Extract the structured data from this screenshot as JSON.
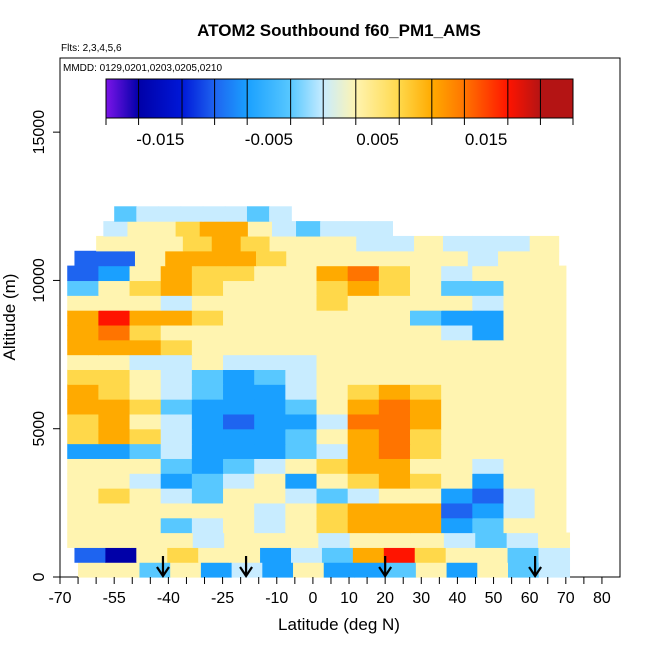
{
  "chart_data": {
    "type": "heatmap",
    "title": "ATOM2 Southbound f60_PM1_AMS",
    "flights_label": "Flts: 2,3,4,5,6",
    "mmdd_label": "MMDD: 0129,0201,0203,0205,0210",
    "xlabel": "Latitude (deg N)",
    "ylabel": "Altitude (m)",
    "xlim": [
      -70,
      85
    ],
    "ylim": [
      0,
      17500
    ],
    "x_ticks": [
      -70,
      -55,
      -40,
      -25,
      -10,
      0,
      10,
      20,
      30,
      40,
      50,
      60,
      70,
      80
    ],
    "x_tick_labels": [
      "-70",
      "-55",
      "-40",
      "-25",
      "-10",
      "0",
      "10",
      "20",
      "30",
      "40",
      "50",
      "60",
      "70",
      "80"
    ],
    "x_minor_ticks": [
      -65,
      -60,
      -50,
      -45,
      -35,
      -30,
      -20,
      -15,
      -5,
      5,
      15,
      25,
      35,
      45,
      55,
      65,
      75
    ],
    "y_ticks": [
      0,
      5000,
      10000,
      15000
    ],
    "y_tick_labels": [
      "0",
      "5000",
      "10000",
      "15000"
    ],
    "colorbar": {
      "min": -0.02,
      "max": 0.023,
      "ticks": [
        -0.015,
        -0.005,
        0.005,
        0.015
      ],
      "tick_labels": [
        "-0.015",
        "-0.005",
        "0.005",
        "0.015"
      ],
      "bounds": [
        -0.02,
        -0.017,
        -0.013,
        -0.01,
        -0.007,
        -0.003,
        0.0,
        0.003,
        0.007,
        0.01,
        0.013,
        0.017,
        0.02,
        0.023
      ],
      "colors": [
        "#7b14e8",
        "#0000a8",
        "#0018d8",
        "#1e64f0",
        "#1aa0ff",
        "#58c8ff",
        "#c8ecff",
        "#fff4b0",
        "#ffd84a",
        "#ffaa00",
        "#ff7400",
        "#ff1400",
        "#b41414"
      ]
    },
    "sonde_arrows_lat": [
      -41.5,
      -18.5,
      20,
      61.5
    ],
    "layers": [
      {
        "alt": [
          0,
          500
        ],
        "lat": [
          -65,
          71
        ],
        "values": [
          0.004,
          0.006,
          -0.003,
          0.006,
          -0.005,
          0.001,
          -0.004,
          0.003,
          -0.005,
          -0.004,
          -0.003,
          0.006,
          -0.004,
          0.004,
          -0.003,
          0.002
        ]
      },
      {
        "alt": [
          500,
          1000
        ],
        "lat": [
          -66,
          71
        ],
        "values": [
          -0.009,
          -0.014,
          0.004,
          0.008,
          0.005,
          0.004,
          -0.004,
          0.001,
          -0.003,
          0.012,
          0.019,
          0.008,
          0.004,
          0.003,
          -0.001,
          0.002
        ]
      },
      {
        "alt": [
          1000,
          1500
        ],
        "lat": [
          -68,
          71
        ],
        "values": [
          0.004,
          0.005,
          0.004,
          0.005,
          0.002,
          0.006,
          0.003,
          0.004,
          0.002,
          0.003,
          0.005,
          0.004,
          0.002,
          -0.002,
          0.001,
          0.003
        ]
      },
      {
        "alt": [
          1500,
          2000
        ],
        "lat": [
          -68,
          70
        ],
        "values": [
          0.005,
          0.006,
          0.005,
          -0.002,
          0.002,
          0.003,
          0.002,
          0.005,
          0.008,
          0.01,
          0.012,
          0.012,
          -0.006,
          -0.003,
          0.004,
          0.004
        ]
      },
      {
        "alt": [
          2000,
          2500
        ],
        "lat": [
          -68,
          70
        ],
        "values": [
          0.004,
          0.006,
          0.004,
          0.005,
          0.006,
          0.004,
          0.001,
          0.004,
          0.009,
          0.01,
          0.011,
          0.011,
          -0.008,
          -0.006,
          0.002,
          0.004
        ]
      },
      {
        "alt": [
          2500,
          3000
        ],
        "lat": [
          -68,
          70
        ],
        "values": [
          0.006,
          0.008,
          0.004,
          0.002,
          -0.002,
          0.003,
          0.004,
          0.0,
          -0.003,
          0.001,
          0.004,
          0.006,
          -0.006,
          -0.01,
          0.002,
          0.004
        ]
      },
      {
        "alt": [
          3000,
          3500
        ],
        "lat": [
          -68,
          70
        ],
        "values": [
          0.005,
          0.004,
          0.0,
          -0.004,
          -0.002,
          0.002,
          0.005,
          -0.004,
          0.004,
          0.008,
          0.01,
          0.007,
          0.003,
          -0.006,
          0.003,
          0.004
        ]
      },
      {
        "alt": [
          3500,
          4000
        ],
        "lat": [
          -68,
          70
        ],
        "values": [
          0.004,
          0.006,
          0.003,
          -0.002,
          -0.006,
          -0.003,
          0.002,
          0.006,
          0.008,
          0.011,
          0.012,
          0.006,
          0.004,
          0.002,
          0.004,
          0.004
        ]
      },
      {
        "alt": [
          4000,
          4500
        ],
        "lat": [
          -68,
          70
        ],
        "values": [
          -0.005,
          -0.007,
          -0.003,
          0.001,
          -0.004,
          -0.006,
          -0.004,
          -0.003,
          0.002,
          0.01,
          0.013,
          0.008,
          0.004,
          0.003,
          0.004,
          0.004
        ]
      },
      {
        "alt": [
          4500,
          5000
        ],
        "lat": [
          -68,
          70
        ],
        "values": [
          0.008,
          0.012,
          0.007,
          0.002,
          -0.005,
          -0.006,
          -0.004,
          -0.002,
          0.003,
          0.012,
          0.014,
          0.009,
          0.005,
          0.004,
          0.004,
          0.004
        ]
      },
      {
        "alt": [
          5000,
          5500
        ],
        "lat": [
          -68,
          70
        ],
        "values": [
          0.007,
          0.01,
          0.006,
          0.001,
          -0.006,
          -0.008,
          -0.006,
          -0.004,
          0.002,
          0.013,
          0.014,
          0.01,
          0.004,
          0.005,
          0.005,
          0.004
        ]
      },
      {
        "alt": [
          5500,
          6000
        ],
        "lat": [
          -68,
          70
        ],
        "values": [
          0.01,
          0.012,
          0.008,
          -0.003,
          -0.007,
          -0.007,
          -0.005,
          -0.003,
          0.003,
          0.012,
          0.013,
          0.01,
          0.006,
          0.005,
          0.005,
          0.004
        ]
      },
      {
        "alt": [
          6000,
          6500
        ],
        "lat": [
          -68,
          70
        ],
        "values": [
          0.012,
          0.008,
          0.006,
          0.001,
          -0.003,
          -0.005,
          -0.004,
          0.001,
          0.005,
          0.009,
          0.01,
          0.008,
          0.005,
          0.004,
          0.005,
          0.004
        ]
      },
      {
        "alt": [
          6500,
          7000
        ],
        "lat": [
          -68,
          70
        ],
        "values": [
          0.008,
          0.007,
          0.004,
          0.001,
          -0.002,
          -0.004,
          -0.003,
          0.001,
          0.004,
          0.006,
          0.006,
          0.005,
          0.004,
          0.004,
          0.004,
          0.004
        ]
      },
      {
        "alt": [
          7000,
          7500
        ],
        "lat": [
          -68,
          70
        ],
        "values": [
          0.005,
          0.004,
          0.002,
          0.002,
          0.003,
          0.002,
          0.002,
          0.002,
          0.003,
          0.004,
          0.004,
          0.003,
          0.003,
          0.003,
          0.003,
          0.003
        ]
      },
      {
        "alt": [
          7500,
          8000
        ],
        "lat": [
          -68,
          70
        ],
        "values": [
          0.011,
          0.012,
          0.01,
          0.008,
          0.006,
          0.005,
          0.004,
          0.004,
          0.005,
          0.005,
          0.005,
          0.005,
          0.003,
          0.004,
          0.006,
          0.004
        ]
      },
      {
        "alt": [
          8000,
          8500
        ],
        "lat": [
          -68,
          70
        ],
        "values": [
          0.01,
          0.014,
          0.009,
          0.006,
          0.004,
          0.003,
          0.003,
          0.004,
          0.006,
          0.004,
          0.004,
          0.003,
          0.002,
          -0.004,
          0.004,
          0.004
        ]
      },
      {
        "alt": [
          8500,
          9000
        ],
        "lat": [
          -68,
          70
        ],
        "values": [
          0.01,
          0.018,
          0.012,
          0.01,
          0.008,
          0.005,
          0.004,
          0.003,
          0.006,
          0.004,
          0.003,
          -0.002,
          -0.005,
          -0.006,
          0.004,
          0.004
        ]
      },
      {
        "alt": [
          9000,
          9500
        ],
        "lat": [
          -68,
          70
        ],
        "values": [
          0.004,
          0.006,
          0.005,
          0.002,
          0.003,
          0.004,
          0.004,
          0.003,
          0.007,
          0.005,
          0.004,
          0.003,
          0.004,
          0.002,
          0.003,
          0.004
        ]
      },
      {
        "alt": [
          9500,
          10000
        ],
        "lat": [
          -68,
          70
        ],
        "values": [
          -0.003,
          0.004,
          0.008,
          0.01,
          0.009,
          0.006,
          0.005,
          0.006,
          0.008,
          0.01,
          0.008,
          0.004,
          -0.003,
          -0.002,
          0.003,
          0.004
        ]
      },
      {
        "alt": [
          10000,
          10500
        ],
        "lat": [
          -68,
          70
        ],
        "values": [
          -0.008,
          -0.006,
          0.006,
          0.01,
          0.009,
          0.007,
          0.006,
          0.004,
          0.01,
          0.014,
          0.008,
          0.004,
          0.002,
          0.003,
          0.004,
          0.003
        ]
      },
      {
        "alt": [
          10500,
          11000
        ],
        "lat": [
          -66,
          68
        ],
        "values": [
          -0.009,
          -0.008,
          0.004,
          0.01,
          0.011,
          0.01,
          0.007,
          0.004,
          0.003,
          0.004,
          0.005,
          0.004,
          0.003,
          0.002,
          0.003,
          0.004
        ]
      },
      {
        "alt": [
          11000,
          11500
        ],
        "lat": [
          -60,
          68
        ],
        "values": [
          0.003,
          0.004,
          0.006,
          0.008,
          0.01,
          0.009,
          0.006,
          0.004,
          0.003,
          0.002,
          0.002,
          0.003,
          0.002,
          0.001,
          0.002,
          0.003
        ]
      },
      {
        "alt": [
          11500,
          12000
        ],
        "lat": [
          -58,
          22
        ],
        "values": [
          0.002,
          0.004,
          0.006,
          0.008,
          0.011,
          0.01,
          0.006,
          0.002,
          -0.001,
          0.0,
          0.001,
          0.001
        ]
      },
      {
        "alt": [
          12000,
          12500
        ],
        "lat": [
          -55,
          -6
        ],
        "values": [
          -0.001,
          0.0,
          0.001,
          0.001,
          0.002,
          0.0,
          -0.001,
          0.001
        ]
      }
    ]
  }
}
